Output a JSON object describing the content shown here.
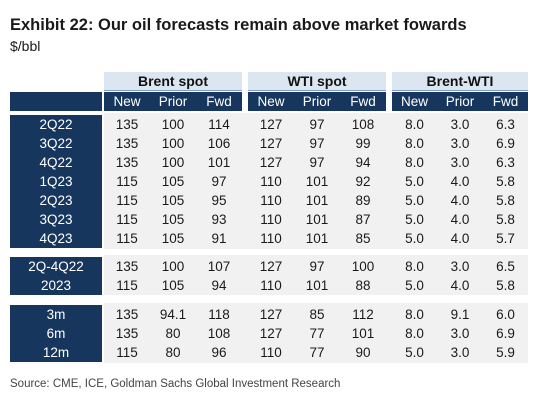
{
  "title": "Exhibit 22: Our oil forecasts remain above market fowards",
  "subtitle": "$/bbl",
  "groups": [
    "Brent spot",
    "WTI spot",
    "Brent-WTI"
  ],
  "columns": [
    "New",
    "Prior",
    "Fwd",
    "New",
    "Prior",
    "Fwd",
    "New",
    "Prior",
    "Fwd"
  ],
  "blocks": [
    {
      "rows": [
        {
          "label": "2Q22",
          "values": [
            "135",
            "100",
            "114",
            "127",
            "97",
            "108",
            "8.0",
            "3.0",
            "6.3"
          ]
        },
        {
          "label": "3Q22",
          "values": [
            "135",
            "100",
            "106",
            "127",
            "97",
            "99",
            "8.0",
            "3.0",
            "6.9"
          ]
        },
        {
          "label": "4Q22",
          "values": [
            "135",
            "100",
            "101",
            "127",
            "97",
            "94",
            "8.0",
            "3.0",
            "6.3"
          ]
        },
        {
          "label": "1Q23",
          "values": [
            "115",
            "105",
            "97",
            "110",
            "101",
            "92",
            "5.0",
            "4.0",
            "5.8"
          ]
        },
        {
          "label": "2Q23",
          "values": [
            "115",
            "105",
            "95",
            "110",
            "101",
            "89",
            "5.0",
            "4.0",
            "5.8"
          ]
        },
        {
          "label": "3Q23",
          "values": [
            "115",
            "105",
            "93",
            "110",
            "101",
            "87",
            "5.0",
            "4.0",
            "5.8"
          ]
        },
        {
          "label": "4Q23",
          "values": [
            "115",
            "105",
            "91",
            "110",
            "101",
            "85",
            "5.0",
            "4.0",
            "5.7"
          ]
        }
      ]
    },
    {
      "rows": [
        {
          "label": "2Q-4Q22",
          "values": [
            "135",
            "100",
            "107",
            "127",
            "97",
            "100",
            "8.0",
            "3.0",
            "6.5"
          ]
        },
        {
          "label": "2023",
          "values": [
            "115",
            "105",
            "94",
            "110",
            "101",
            "88",
            "5.0",
            "4.0",
            "5.8"
          ]
        }
      ]
    },
    {
      "rows": [
        {
          "label": "3m",
          "values": [
            "135",
            "94.1",
            "118",
            "127",
            "85",
            "112",
            "8.0",
            "9.1",
            "6.0"
          ]
        },
        {
          "label": "6m",
          "values": [
            "135",
            "80",
            "108",
            "127",
            "77",
            "101",
            "8.0",
            "3.0",
            "6.9"
          ]
        },
        {
          "label": "12m",
          "values": [
            "115",
            "80",
            "96",
            "110",
            "77",
            "90",
            "5.0",
            "3.0",
            "5.9"
          ]
        }
      ]
    }
  ],
  "source": "Source: CME, ICE, Goldman Sachs Global Investment Research",
  "colors": {
    "navy": "#17365d",
    "group_header": "#dce6f1",
    "block_bg": "#f1f1f1"
  }
}
